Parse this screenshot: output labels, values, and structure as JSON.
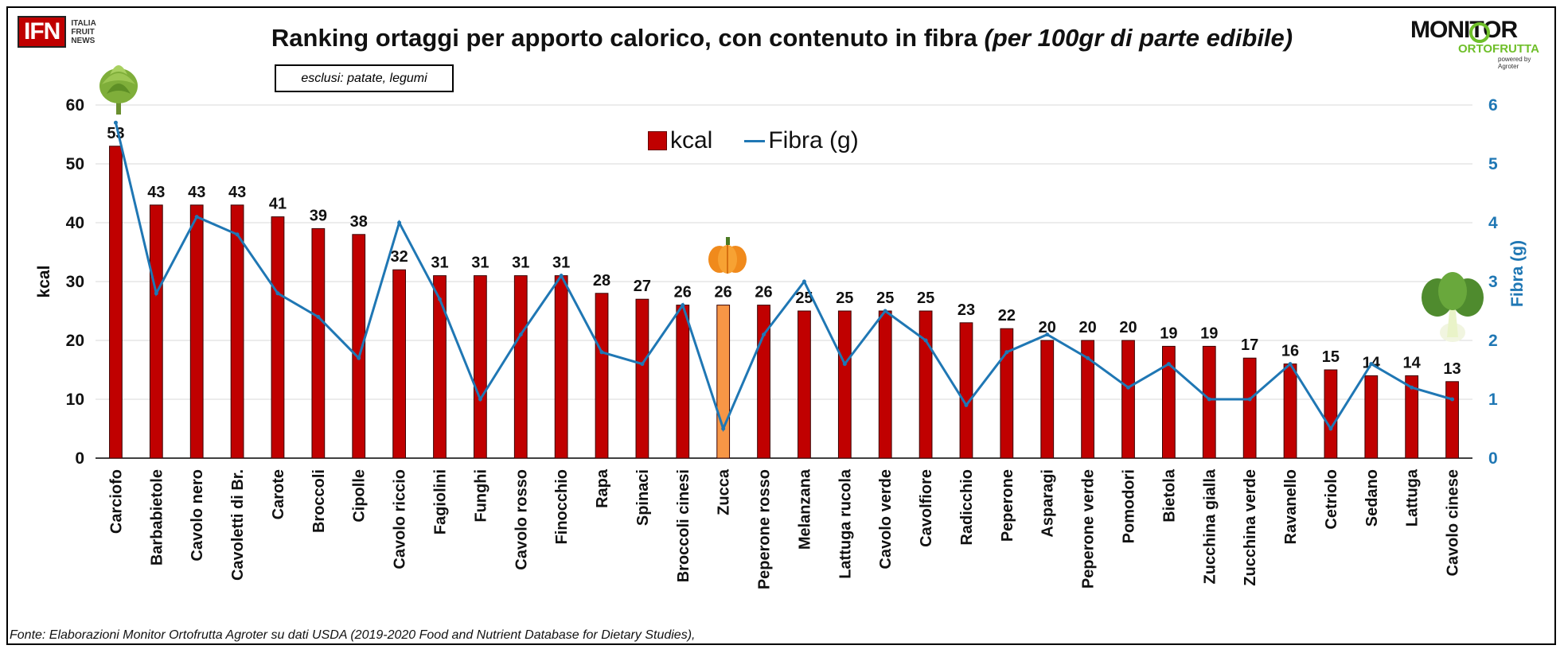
{
  "header": {
    "logo_left": {
      "main": "IFN",
      "line1": "ITALIA",
      "line2": "FRUIT",
      "line3": "NEWS"
    },
    "logo_right": {
      "main": "MONITOR",
      "sub": "ORTOFRUTTA",
      "by": "powered by Agroter"
    },
    "title": "Ranking ortaggi per apporto calorico, con contenuto in fibra ",
    "title_italic": "(per 100gr di parte edibile)",
    "note": "esclusi: patate, legumi"
  },
  "legend": {
    "kcal": "kcal",
    "fibra": "Fibra (g)"
  },
  "source": "Fonte: Elaborazioni Monitor Ortofrutta Agroter su dati USDA (2019-2020 Food and Nutrient Database for Dietary Studies),",
  "colors": {
    "bar": "#c00000",
    "bar_highlight": "#f79646",
    "line": "#1f77b4"
  },
  "icons": [
    "artichoke-icon",
    "pumpkin-icon",
    "bok-choy-icon"
  ],
  "chart_data": {
    "type": "bar",
    "categories": [
      "Carciofo",
      "Barbabietole",
      "Cavolo nero",
      "Cavoletti di Br.",
      "Carote",
      "Broccoli",
      "Cipolle",
      "Cavolo riccio",
      "Fagiolini",
      "Funghi",
      "Cavolo rosso",
      "Finocchio",
      "Rapa",
      "Spinaci",
      "Broccoli cinesi",
      "Zucca",
      "Peperone rosso",
      "Melanzana",
      "Lattuga rucola",
      "Cavolo verde",
      "Cavolfiore",
      "Radicchio",
      "Peperone",
      "Asparagi",
      "Peperone verde",
      "Pomodori",
      "Bietola",
      "Zucchina gialla",
      "Zucchina verde",
      "Ravanello",
      "Cetriolo",
      "Sedano",
      "Lattuga",
      "Cavolo cinese"
    ],
    "series": [
      {
        "name": "kcal",
        "type": "bar",
        "axis": "left",
        "values": [
          53,
          43,
          43,
          43,
          41,
          39,
          38,
          32,
          31,
          31,
          31,
          31,
          28,
          27,
          26,
          26,
          26,
          25,
          25,
          25,
          25,
          23,
          22,
          20,
          20,
          20,
          19,
          19,
          17,
          16,
          15,
          14,
          14,
          13
        ],
        "highlight": "Zucca"
      },
      {
        "name": "Fibra (g)",
        "type": "line",
        "axis": "right",
        "values": [
          5.7,
          2.8,
          4.1,
          3.8,
          2.8,
          2.4,
          1.7,
          4.0,
          2.7,
          1.0,
          2.1,
          3.1,
          1.8,
          1.6,
          2.6,
          0.5,
          2.1,
          3.0,
          1.6,
          2.5,
          2.0,
          0.9,
          1.8,
          2.1,
          1.7,
          1.2,
          1.6,
          1.0,
          1.0,
          1.6,
          0.5,
          1.6,
          1.2,
          1.0
        ]
      }
    ],
    "ylabel": "kcal",
    "y2label": "Fibra (g)",
    "ylim": [
      0,
      60
    ],
    "y2lim": [
      0,
      6
    ],
    "yticks": [
      0,
      10,
      20,
      30,
      40,
      50,
      60
    ],
    "y2ticks": [
      0,
      1,
      2,
      3,
      4,
      5,
      6
    ],
    "grid": true,
    "legend_position": "top-center"
  }
}
